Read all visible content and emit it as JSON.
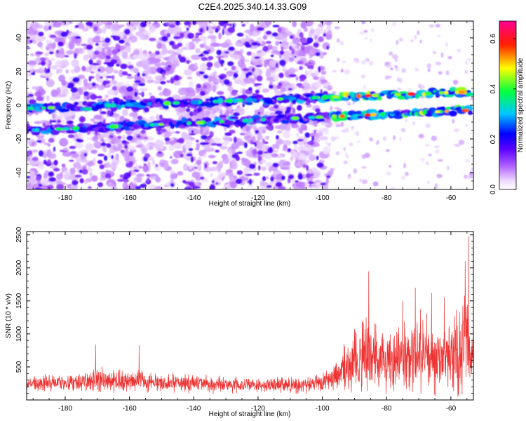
{
  "figure_title": "C2E4.2025.340.14.33.G09",
  "chart_data": [
    {
      "type": "heatmap",
      "title": "C2E4.2025.340.14.33.G09",
      "xlabel": "Height of straight line (km)",
      "ylabel": "Frequency (Hz)",
      "xlim": [
        -192,
        -53
      ],
      "ylim": [
        -50,
        50
      ],
      "xticks": [
        -180,
        -160,
        -140,
        -120,
        -100,
        -80,
        -60
      ],
      "xtick_labels": [
        "-180",
        "-160",
        "-140",
        "-120",
        "-100",
        "-80",
        "-60"
      ],
      "yticks": [
        -40,
        -20,
        0,
        20,
        40
      ],
      "ytick_labels": [
        "-40",
        "-20",
        "0",
        "20",
        "40"
      ],
      "colorbar": {
        "label": "Normalized spectral amplitude",
        "range": [
          0.0,
          0.67
        ],
        "ticks": [
          0.0,
          0.2,
          0.4,
          0.6
        ],
        "tick_labels": [
          "0.0",
          "0.2",
          "0.4",
          "0.6"
        ],
        "colormap": [
          "#ffffff",
          "#e8c8ff",
          "#a24bff",
          "#5a00ff",
          "#0000ff",
          "#00d0ff",
          "#00ff60",
          "#ffff00",
          "#ff0000",
          "#ff0090"
        ]
      },
      "features": {
        "noise_band_end_km": -98,
        "band_upper": {
          "start_km": -192,
          "end_km": -54,
          "freq_start_hz": -2,
          "freq_end_hz": 8
        },
        "band_lower": {
          "start_km": -192,
          "end_km": -54,
          "freq_start_hz": -15,
          "freq_end_hz": -3
        }
      }
    },
    {
      "type": "line",
      "xlabel": "Height of straight line (km)",
      "ylabel": "SNR (10 * v/v)",
      "xlim": [
        -192,
        -53
      ],
      "ylim": [
        0,
        2550
      ],
      "xticks": [
        -180,
        -160,
        -140,
        -120,
        -100,
        -80,
        -60
      ],
      "xtick_labels": [
        "-180",
        "-160",
        "-140",
        "-120",
        "-100",
        "-80",
        "-60"
      ],
      "yticks": [
        500,
        1000,
        1500,
        2000,
        2500
      ],
      "ytick_labels": [
        "500",
        "1000",
        "1500",
        "2000",
        "2500"
      ],
      "series_color": "#ee3333",
      "envelope": {
        "x": [
          -192,
          -180,
          -170,
          -160,
          -150,
          -140,
          -130,
          -120,
          -110,
          -100,
          -97,
          -93,
          -90,
          -86,
          -82,
          -78,
          -74,
          -70,
          -66,
          -62,
          -58,
          -55,
          -53
        ],
        "mean": [
          250,
          260,
          300,
          280,
          260,
          250,
          230,
          220,
          230,
          250,
          330,
          450,
          550,
          700,
          650,
          600,
          650,
          700,
          700,
          650,
          750,
          900,
          700
        ],
        "amp": [
          150,
          160,
          250,
          200,
          180,
          170,
          150,
          140,
          150,
          180,
          250,
          450,
          600,
          800,
          650,
          600,
          700,
          750,
          700,
          650,
          800,
          1200,
          600
        ]
      },
      "peaks": [
        {
          "x": -54.5,
          "y": 2480
        },
        {
          "x": -55.5,
          "y": 2100
        },
        {
          "x": -85.5,
          "y": 1950
        },
        {
          "x": -71,
          "y": 1700
        },
        {
          "x": -66,
          "y": 1620
        },
        {
          "x": -62,
          "y": 1560
        },
        {
          "x": -75,
          "y": 1500
        },
        {
          "x": -170.5,
          "y": 840
        },
        {
          "x": -157,
          "y": 830
        }
      ]
    }
  ]
}
